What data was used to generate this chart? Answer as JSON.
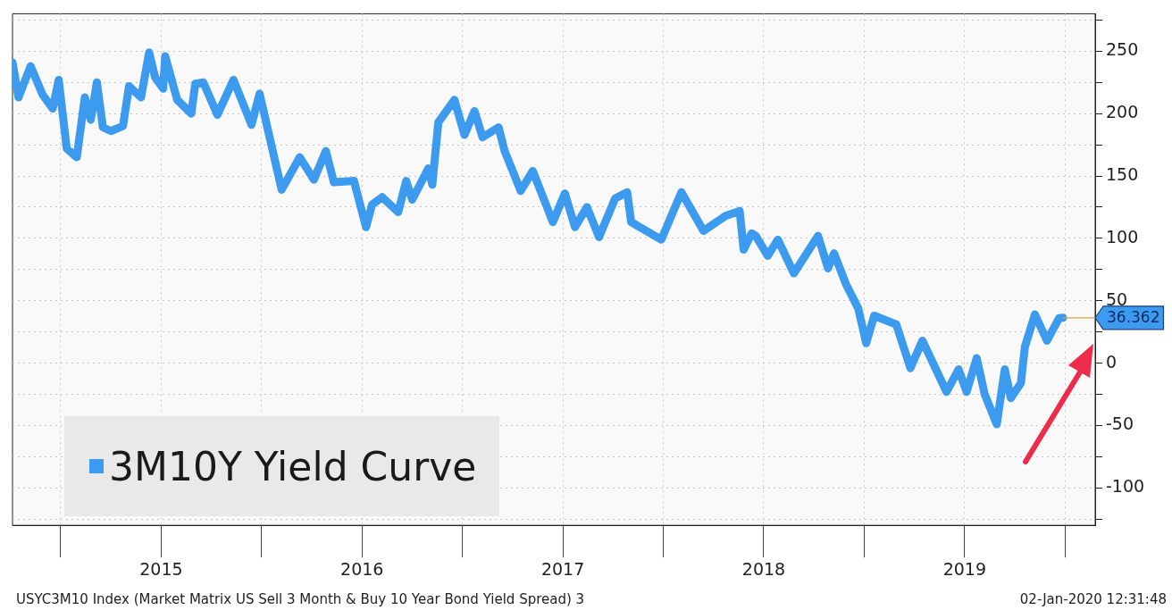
{
  "chart_data": {
    "type": "line",
    "x": [
      2014.76,
      2014.79,
      2014.85,
      2014.91,
      2014.96,
      2014.99,
      2015.03,
      2015.08,
      2015.12,
      2015.15,
      2015.18,
      2015.21,
      2015.25,
      2015.31,
      2015.34,
      2015.4,
      2015.44,
      2015.47,
      2015.51,
      2015.52,
      2015.58,
      2015.65,
      2015.67,
      2015.71,
      2015.78,
      2015.86,
      2015.95,
      2015.99,
      2016.1,
      2016.19,
      2016.26,
      2016.32,
      2016.36,
      2016.46,
      2016.52,
      2016.55,
      2016.6,
      2016.68,
      2016.72,
      2016.75,
      2016.83,
      2016.85,
      2016.88,
      2016.96,
      2017.01,
      2017.06,
      2017.1,
      2017.18,
      2017.21,
      2017.29,
      2017.35,
      2017.45,
      2017.51,
      2017.56,
      2017.62,
      2017.68,
      2017.76,
      2017.82,
      2017.84,
      2017.99,
      2018.09,
      2018.2,
      2018.31,
      2018.38,
      2018.4,
      2018.44,
      2018.46,
      2018.52,
      2018.57,
      2018.65,
      2018.77,
      2018.82,
      2018.85,
      2018.91,
      2018.97,
      2019.01,
      2019.05,
      2019.16,
      2019.23,
      2019.29,
      2019.41,
      2019.47,
      2019.51,
      2019.56,
      2019.6,
      2019.66,
      2019.7,
      2019.73,
      2019.78,
      2019.8,
      2019.85,
      2019.91,
      2019.97,
      2019.99
    ],
    "series": [
      {
        "name": "3M10Y Yield Curve",
        "color": "#3d9bef",
        "values": [
          241,
          213,
          238,
          215,
          204,
          227,
          172,
          165,
          213,
          195,
          225,
          189,
          186,
          190,
          222,
          213,
          249,
          229,
          220,
          246,
          211,
          200,
          224,
          225,
          199,
          227,
          191,
          216,
          139,
          165,
          147,
          170,
          145,
          146,
          109,
          127,
          133,
          121,
          146,
          131,
          156,
          143,
          193,
          211,
          183,
          202,
          181,
          189,
          170,
          138,
          154,
          113,
          136,
          109,
          125,
          101,
          132,
          137,
          113,
          99,
          137,
          106,
          118,
          122,
          91,
          104,
          102,
          86,
          99,
          72,
          102,
          76,
          88,
          63,
          44,
          16,
          38,
          31,
          -4,
          18,
          -23,
          -5,
          -23,
          4,
          -25,
          -49,
          -5,
          -28,
          -16,
          13,
          39,
          18,
          36,
          36.362
        ]
      }
    ],
    "xlim": [
      2014.76,
      2020.15
    ],
    "xticks": [
      {
        "value": 2015,
        "label": null
      },
      {
        "value": 2015.5,
        "label": "2015"
      },
      {
        "value": 2016,
        "label": null
      },
      {
        "value": 2016.5,
        "label": "2016"
      },
      {
        "value": 2017,
        "label": null
      },
      {
        "value": 2017.5,
        "label": "2017"
      },
      {
        "value": 2018,
        "label": null
      },
      {
        "value": 2018.5,
        "label": "2018"
      },
      {
        "value": 2019,
        "label": null
      },
      {
        "value": 2019.5,
        "label": "2019"
      },
      {
        "value": 2020,
        "label": null
      }
    ],
    "ylim": [
      -130,
      280
    ],
    "yticks": [
      {
        "value": -125,
        "label": null
      },
      -100,
      {
        "value": -75,
        "label": null
      },
      -50,
      {
        "value": -25,
        "label": null
      },
      0,
      {
        "value": 25,
        "label": null
      },
      50,
      {
        "value": 75,
        "label": null
      },
      100,
      {
        "value": 125,
        "label": null
      },
      150,
      {
        "value": 175,
        "label": null
      },
      200,
      {
        "value": 225,
        "label": null
      },
      250,
      {
        "value": 275,
        "label": null
      }
    ],
    "grid": true,
    "legend": "bottom left",
    "marker": "none",
    "line_style": "solid",
    "annotations": [
      {
        "text": "36.362",
        "x": 2019.99,
        "y": 36.362
      },
      "USYC3M10 Index (Market Matrix US Sell 3 Month & Buy 10 Year Bond Yield Spread) 3",
      "02-Jan-2020 12:31:48"
    ]
  }
}
